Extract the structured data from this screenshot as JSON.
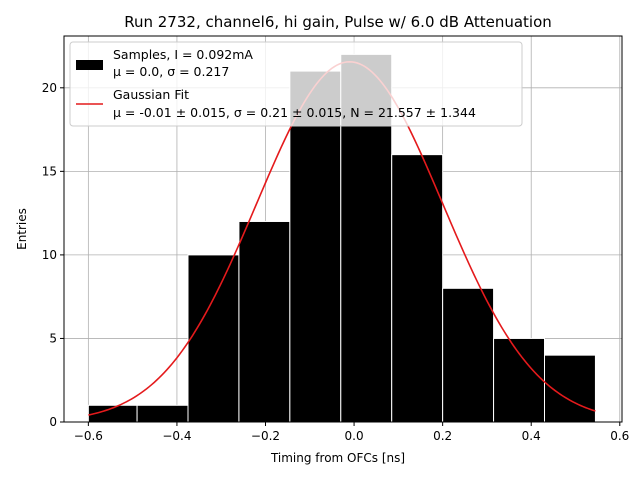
{
  "chart_data": {
    "type": "bar",
    "title": "Run 2732, channel6, hi gain, Pulse w/ 6.0 dB Attenuation",
    "xlabel": "Timing from OFCs [ns]",
    "ylabel": "Entries",
    "xlim": [
      -0.655,
      0.605
    ],
    "ylim": [
      0,
      23.1
    ],
    "xticks": [
      -0.6,
      -0.4,
      -0.2,
      0.0,
      0.2,
      0.4,
      0.6
    ],
    "xtick_labels": [
      "−0.6",
      "−0.4",
      "−0.2",
      "0.0",
      "0.2",
      "0.4",
      "0.6"
    ],
    "yticks": [
      0,
      5,
      10,
      15,
      20
    ],
    "ytick_labels": [
      "0",
      "5",
      "10",
      "15",
      "20"
    ],
    "grid": true,
    "legend_position": "top-left",
    "bin_edges": [
      -0.6,
      -0.488,
      -0.376,
      -0.264,
      -0.152,
      -0.04,
      0.072,
      0.184,
      0.296,
      0.408,
      0.52
    ],
    "bin_edges_visible": [
      -0.6,
      -0.49,
      -0.375,
      -0.26,
      -0.145,
      -0.03,
      0.085,
      0.2,
      0.315,
      0.43,
      0.545
    ],
    "series": [
      {
        "name": "Samples, I = 0.092mA",
        "legend_line2": "μ = 0.0, σ = 0.217",
        "kind": "histogram",
        "color": "#000000",
        "edgecolor": "#ffffff",
        "values": [
          1,
          1,
          10,
          12,
          21,
          22,
          16,
          8,
          5,
          4
        ]
      },
      {
        "name": "Gaussian Fit",
        "legend_line2": "μ = -0.01 ± 0.015, σ = 0.21 ± 0.015, N = 21.557 ± 1.344",
        "kind": "line",
        "color": "#e41a1c",
        "mu": -0.01,
        "sigma": 0.21,
        "N": 21.557,
        "x_range": [
          -0.6,
          0.545
        ]
      }
    ]
  }
}
